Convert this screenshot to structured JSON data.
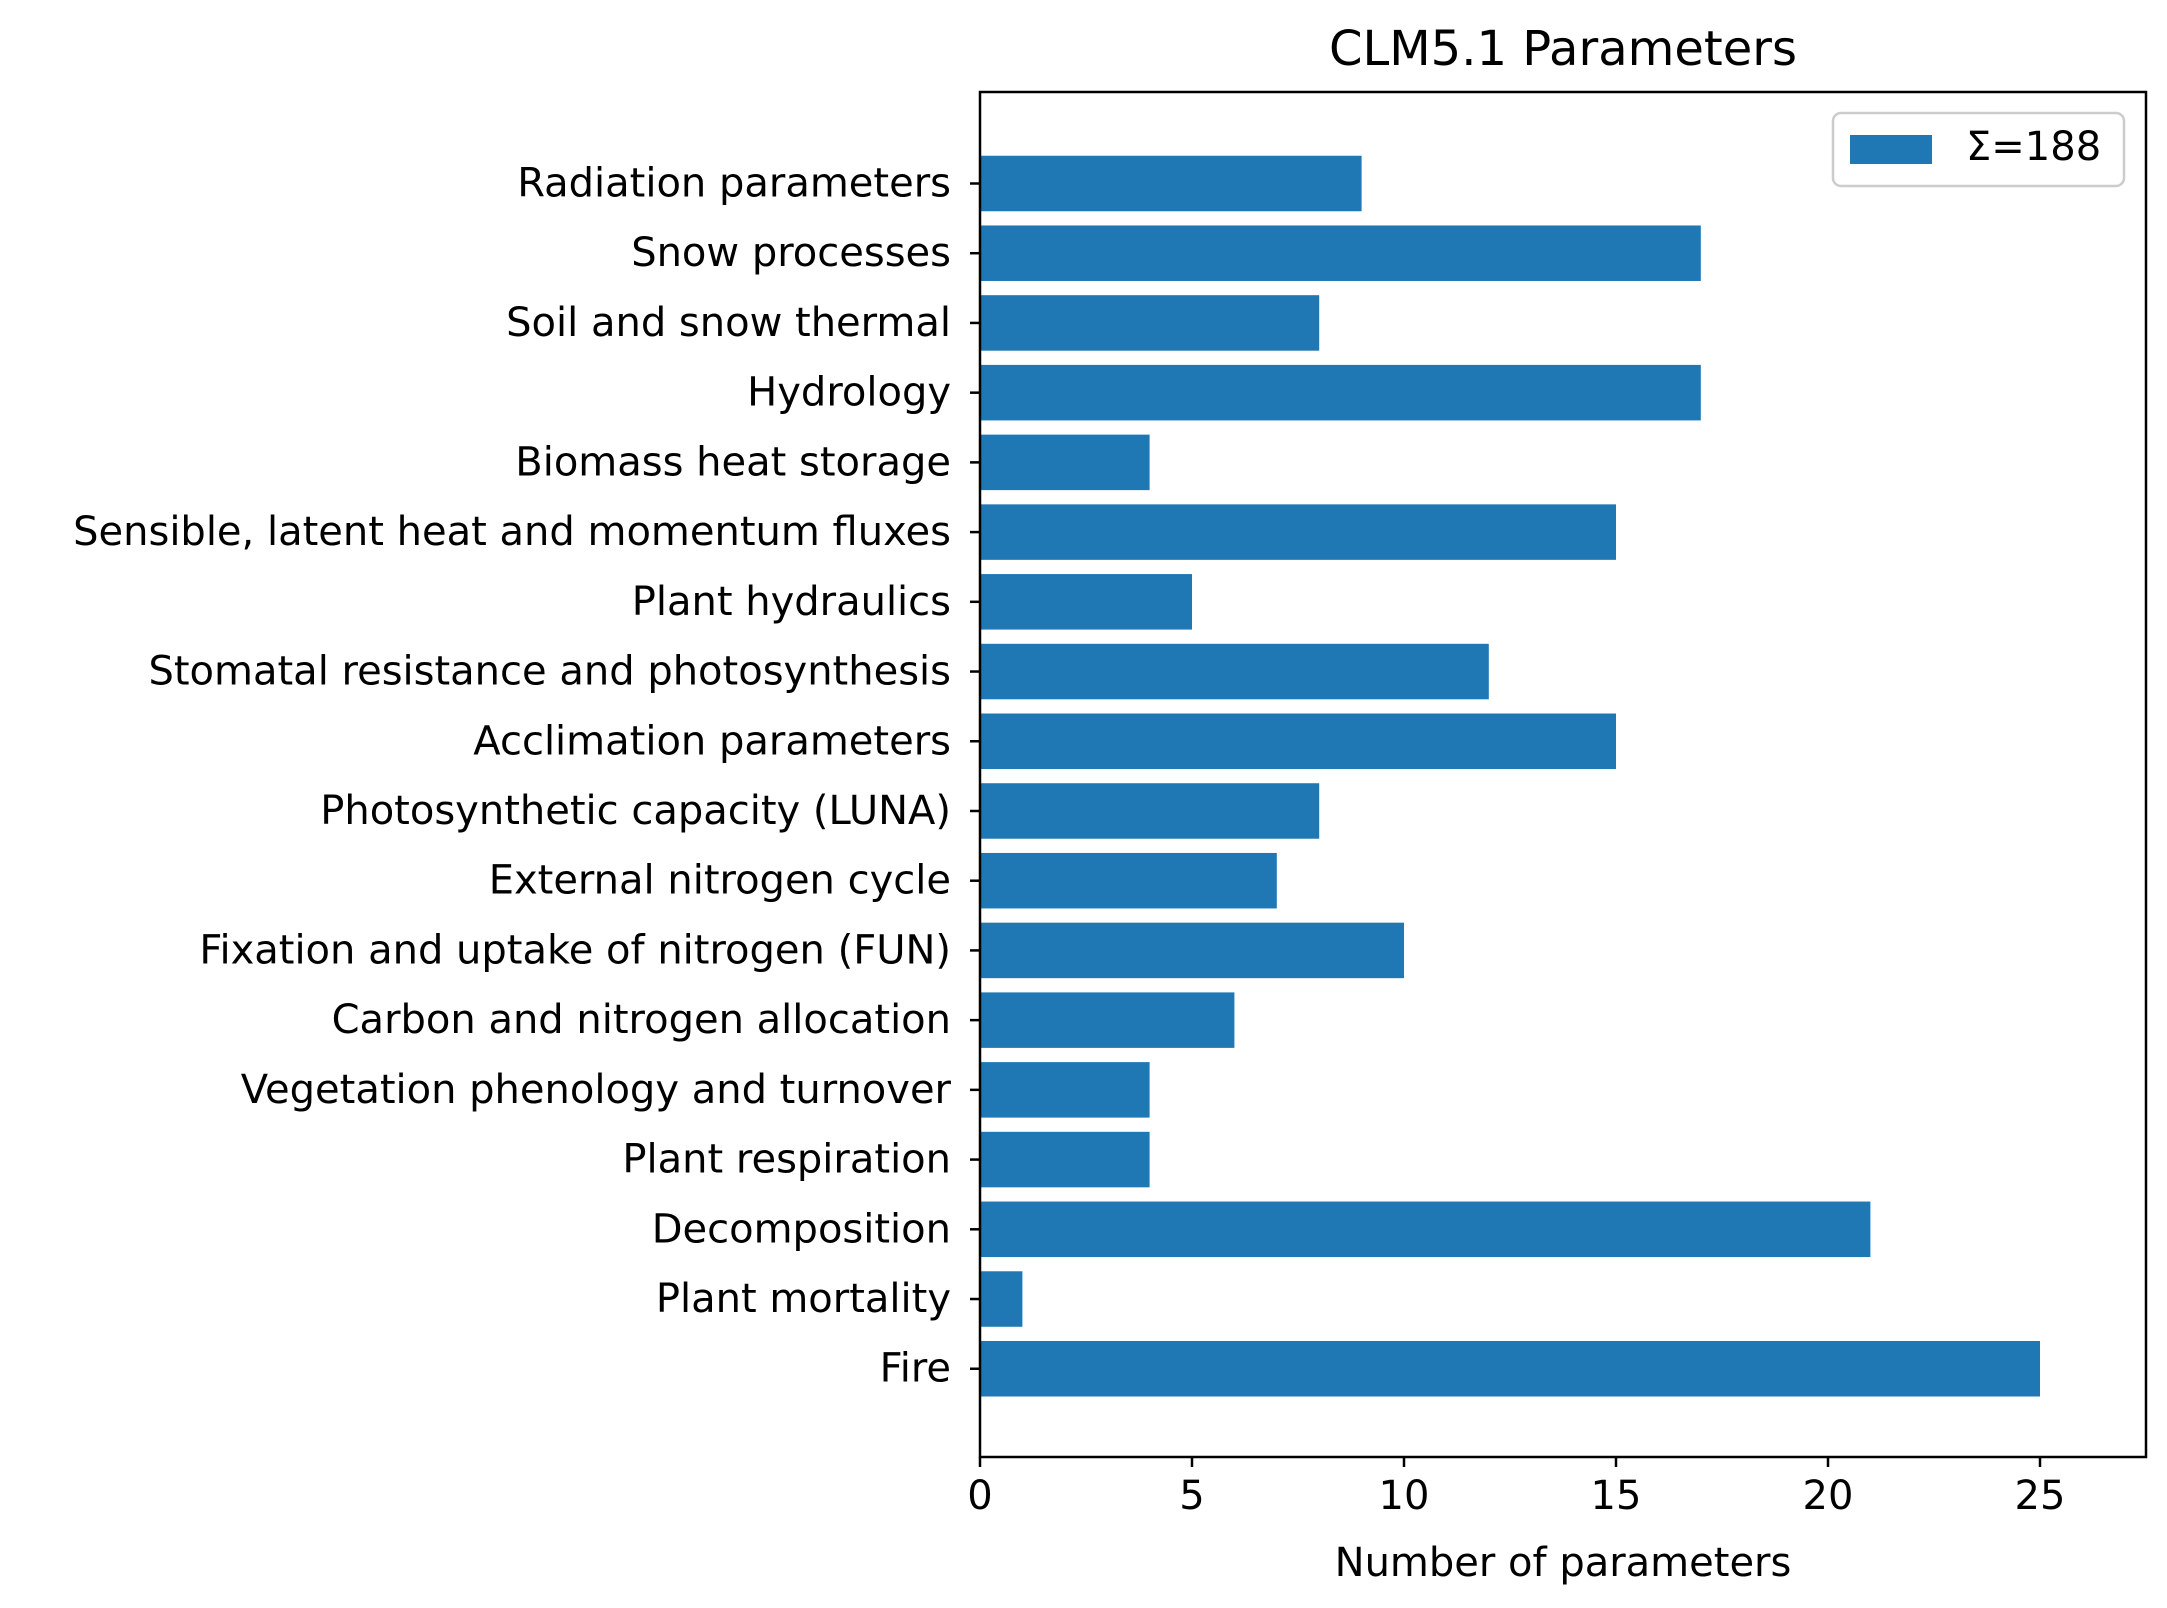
{
  "chart_data": {
    "type": "bar",
    "orientation": "horizontal",
    "title": "CLM5.1 Parameters",
    "xlabel": "Number of parameters",
    "ylabel": "",
    "xlim": [
      0,
      27.5
    ],
    "xticks": [
      0,
      5,
      10,
      15,
      20,
      25
    ],
    "grid": false,
    "legend_position": "top-right",
    "colors": {
      "bar": "#1f77b4",
      "axis": "#000000"
    },
    "series": [
      {
        "name": "Σ=188",
        "categories": [
          "Radiation parameters",
          "Snow processes",
          "Soil and snow thermal",
          "Hydrology",
          "Biomass heat storage",
          "Sensible, latent heat and momentum fluxes",
          "Plant hydraulics",
          "Stomatal resistance and photosynthesis",
          "Acclimation parameters",
          "Photosynthetic capacity (LUNA)",
          "External nitrogen cycle",
          "Fixation and uptake of nitrogen (FUN)",
          "Carbon and nitrogen allocation",
          "Vegetation phenology and turnover",
          "Plant respiration",
          "Decomposition",
          "Plant mortality",
          "Fire"
        ],
        "values": [
          9,
          17,
          8,
          17,
          4,
          15,
          5,
          12,
          15,
          8,
          7,
          10,
          6,
          4,
          4,
          21,
          1,
          25
        ]
      }
    ]
  }
}
